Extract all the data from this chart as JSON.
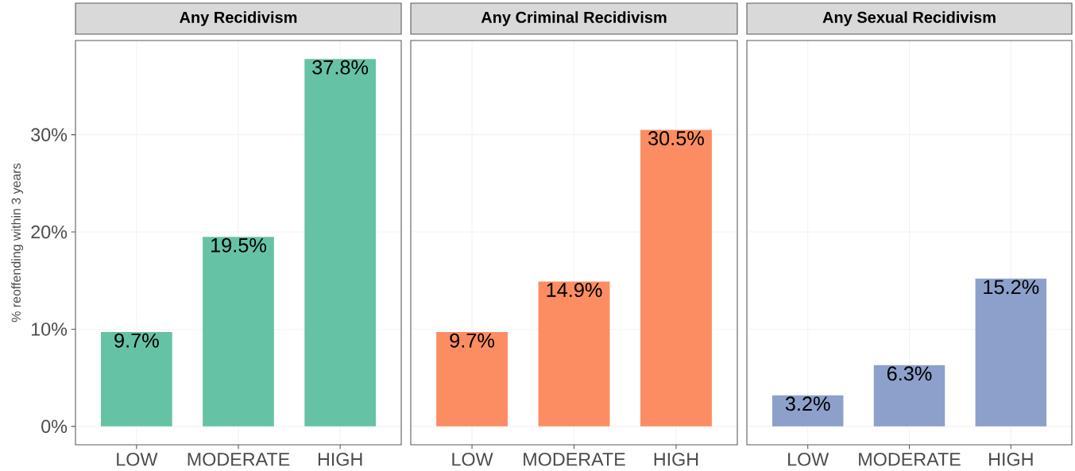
{
  "chart_data": [
    {
      "type": "bar",
      "title": "Any Recidivism",
      "ylabel": "% reoffending within 3 years",
      "categories": [
        "LOW",
        "MODERATE",
        "HIGH"
      ],
      "values": [
        9.7,
        19.5,
        37.8
      ],
      "value_labels": [
        "9.7%",
        "19.5%",
        "37.8%"
      ],
      "color": "#66c2a5",
      "ylim": [
        -1.89,
        39.69
      ],
      "yticks": [
        {
          "value": 0,
          "label": "0%"
        },
        {
          "value": 10,
          "label": "10%"
        },
        {
          "value": 20,
          "label": "20%"
        },
        {
          "value": 30,
          "label": "30%"
        }
      ],
      "grid": true
    },
    {
      "type": "bar",
      "title": "Any Criminal Recidivism",
      "categories": [
        "LOW",
        "MODERATE",
        "HIGH"
      ],
      "values": [
        9.7,
        14.9,
        30.5
      ],
      "value_labels": [
        "9.7%",
        "14.9%",
        "30.5%"
      ],
      "color": "#fc8d62",
      "ylim": [
        -1.89,
        39.69
      ],
      "yticks": [
        0,
        10,
        20,
        30
      ],
      "grid": true,
      "tick_labels": "x"
    },
    {
      "type": "bar",
      "title": "Any Sexual Recidivism",
      "categories": [
        "LOW",
        "MODERATE",
        "HIGH"
      ],
      "values": [
        3.2,
        6.3,
        15.2
      ],
      "value_labels": [
        "3.2%",
        "6.3%",
        "15.2%"
      ],
      "color": "#8da0cb",
      "ylim": [
        -1.89,
        39.69
      ],
      "yticks": [
        0,
        10,
        20,
        30
      ],
      "grid": true,
      "tick_labels": "x"
    }
  ]
}
